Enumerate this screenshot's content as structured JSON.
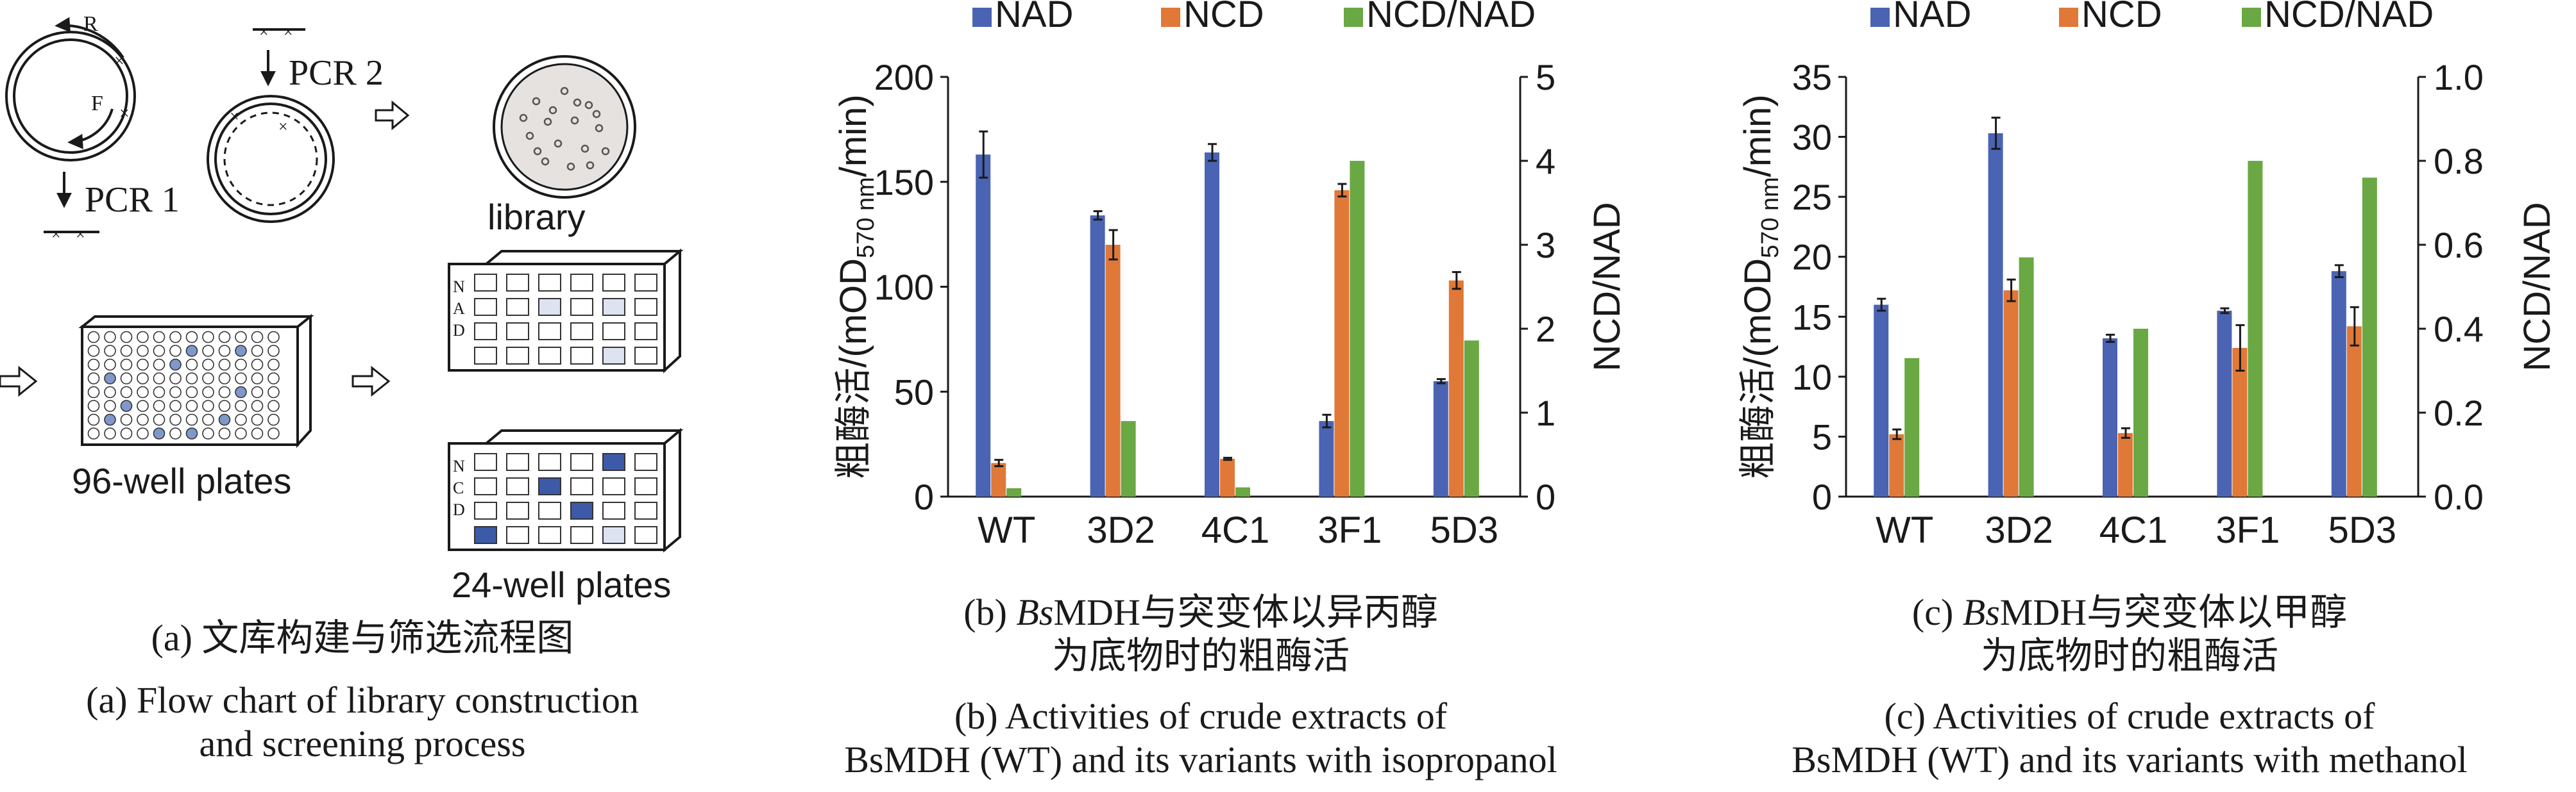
{
  "colors": {
    "nad": "#4a63b3",
    "ncd": "#e07838",
    "ratio": "#6aa844",
    "ink": "#1a1a1a",
    "plate_light": "#dde3f1",
    "plate_mid": "#7f98cc",
    "plate_dark": "#3d5aa8",
    "colony": "#e5e2e0"
  },
  "panel_a": {
    "label_R": "R",
    "label_F": "F",
    "pcr1": "PCR 1",
    "pcr2": "PCR 2",
    "library": "library",
    "plates96": "96-well plates",
    "plates24": "24-well plates",
    "nad_letters": [
      "N",
      "A",
      "D"
    ],
    "ncd_letters": [
      "N",
      "C",
      "D"
    ],
    "caption_cn": "(a) 文库构建与筛选流程图",
    "caption_en_1": "(a) Flow chart of library construction",
    "caption_en_2": "and screening process",
    "icons": [
      "plasmid-icon",
      "arrow-icon",
      "petri-dish-icon",
      "well-plate-icon"
    ]
  },
  "chart_data": [
    {
      "type": "bar",
      "id": "b",
      "categories": [
        "WT",
        "3D2",
        "4C1",
        "3F1",
        "5D3"
      ],
      "series": [
        {
          "name": "NAD",
          "axis": "left",
          "values": [
            163,
            134,
            164,
            36,
            55
          ],
          "errors": [
            11,
            2,
            4,
            3,
            1
          ]
        },
        {
          "name": "NCD",
          "axis": "left",
          "values": [
            16,
            120,
            18,
            146,
            103
          ],
          "errors": [
            1.5,
            7,
            0.5,
            3,
            4
          ]
        },
        {
          "name": "NCD/NAD",
          "axis": "right",
          "values": [
            0.1,
            0.9,
            0.11,
            4.0,
            1.86
          ],
          "errors": [
            0,
            0,
            0,
            0,
            0
          ]
        }
      ],
      "ylim_left": [
        0,
        200
      ],
      "yticks_left": [
        0,
        50,
        100,
        150,
        200
      ],
      "ylim_right": [
        0,
        5
      ],
      "yticks_right": [
        0,
        1,
        2,
        3,
        4,
        5
      ],
      "ylabel_cn": "粗酶活/",
      "ylabel_unit_open": "(mOD",
      "ylabel_unit_sub": "570 nm",
      "ylabel_unit_close": "/min)",
      "ylabel_right": "NCD/NAD",
      "legend_position": "top",
      "caption_cn_prefix": "(b) ",
      "caption_cn_italic": "Bs",
      "caption_cn_rest": "MDH与突变体以异丙醇",
      "caption_cn_2": "为底物时的粗酶活",
      "caption_en_1": "(b) Activities of crude extracts of",
      "caption_en_2": "BsMDH (WT) and its variants with isopropanol"
    },
    {
      "type": "bar",
      "id": "c",
      "categories": [
        "WT",
        "3D2",
        "4C1",
        "3F1",
        "5D3"
      ],
      "series": [
        {
          "name": "NAD",
          "axis": "left",
          "values": [
            16,
            30.3,
            13.2,
            15.5,
            18.8
          ],
          "errors": [
            0.5,
            1.3,
            0.3,
            0.2,
            0.5
          ]
        },
        {
          "name": "NCD",
          "axis": "left",
          "values": [
            5.2,
            17.2,
            5.3,
            12.4,
            14.2
          ],
          "errors": [
            0.4,
            0.9,
            0.4,
            1.9,
            1.6
          ]
        },
        {
          "name": "NCD/NAD",
          "axis": "right",
          "values": [
            0.33,
            0.57,
            0.4,
            0.8,
            0.76
          ],
          "errors": [
            0,
            0,
            0,
            0,
            0
          ]
        }
      ],
      "ylim_left": [
        0,
        35
      ],
      "yticks_left": [
        0,
        5,
        10,
        15,
        20,
        25,
        30,
        35
      ],
      "ylim_right": [
        0,
        1.0
      ],
      "yticks_right": [
        "0.0",
        "0.2",
        "0.4",
        "0.6",
        "0.8",
        "1.0"
      ],
      "ylabel_cn": "粗酶活/",
      "ylabel_unit_open": "(mOD",
      "ylabel_unit_sub": "570 nm",
      "ylabel_unit_close": "/min)",
      "ylabel_right": "NCD/NAD",
      "legend_position": "top",
      "caption_cn_prefix": "(c) ",
      "caption_cn_italic": "Bs",
      "caption_cn_rest": "MDH与突变体以甲醇",
      "caption_cn_2": "为底物时的粗酶活",
      "caption_en_1": "(c) Activities of crude extracts of",
      "caption_en_2": "BsMDH (WT) and its variants with methanol"
    }
  ]
}
